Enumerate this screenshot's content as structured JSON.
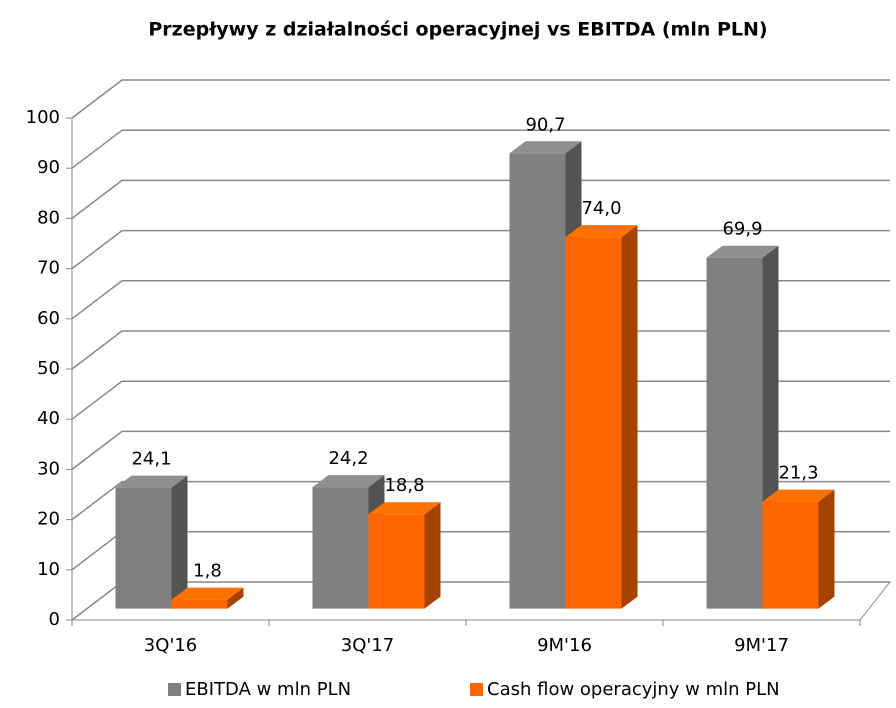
{
  "chart_data": {
    "type": "bar3d",
    "title": "Przepływy z działalności operacyjnej vs EBITDA (mln PLN)",
    "categories": [
      "3Q'16",
      "3Q'17",
      "9M'16",
      "9M'17"
    ],
    "series": [
      {
        "name": "EBITDA w mln PLN",
        "color": "#808080",
        "values": [
          24.1,
          24.2,
          90.7,
          69.9
        ],
        "value_labels": [
          "24,1",
          "24,2",
          "90,7",
          "69,9"
        ]
      },
      {
        "name": "Cash flow operacyjny w mln PLN",
        "color": "#ff6600",
        "values": [
          1.8,
          18.8,
          74.0,
          21.3
        ],
        "value_labels": [
          "1,8",
          "18,8",
          "74,0",
          "21,3"
        ]
      }
    ],
    "ylim": [
      0,
      100
    ],
    "yticks": [
      0,
      10,
      20,
      30,
      40,
      50,
      60,
      70,
      80,
      90,
      100
    ],
    "grid": true,
    "legend": "bottom"
  }
}
